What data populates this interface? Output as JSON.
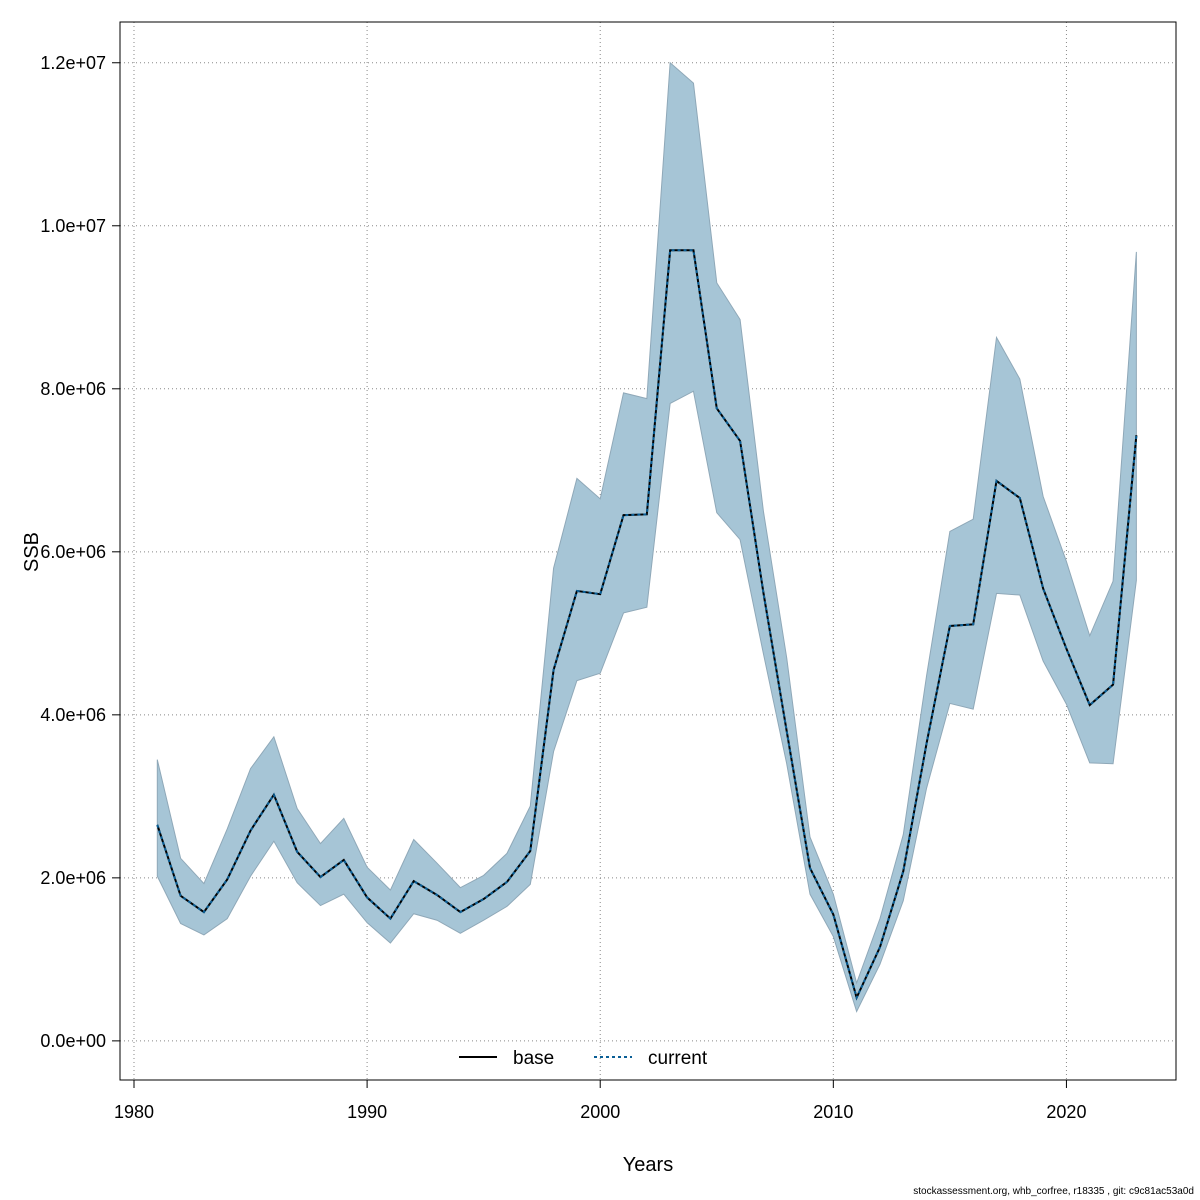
{
  "chart_data": {
    "type": "line",
    "xlabel": "Years",
    "ylabel": "SSB",
    "xlim": [
      1979.4,
      2024.7
    ],
    "ylim": [
      -480000,
      12500000
    ],
    "x_ticks": [
      1980,
      1990,
      2000,
      2010,
      2020
    ],
    "x_tick_labels": [
      "1980",
      "1990",
      "2000",
      "2010",
      "2020"
    ],
    "y_ticks": [
      0,
      2000000,
      4000000,
      6000000,
      8000000,
      10000000,
      12000000
    ],
    "y_tick_labels": [
      "0.0e+00",
      "2.0e+06",
      "4.0e+06",
      "6.0e+06",
      "8.0e+06",
      "1.0e+07",
      "1.2e+07"
    ],
    "grid": true,
    "legend_position": "bottom-center",
    "x": [
      1981,
      1982,
      1983,
      1984,
      1985,
      1986,
      1987,
      1988,
      1989,
      1990,
      1991,
      1992,
      1993,
      1994,
      1995,
      1996,
      1997,
      1998,
      1999,
      2000,
      2001,
      2002,
      2003,
      2004,
      2005,
      2006,
      2007,
      2008,
      2009,
      2010,
      2011,
      2012,
      2013,
      2014,
      2015,
      2016,
      2017,
      2018,
      2019,
      2020,
      2021,
      2022,
      2023
    ],
    "series": [
      {
        "name": "base",
        "color": "#000000",
        "line_style": "solid",
        "values": [
          2650000,
          1780000,
          1580000,
          1980000,
          2580000,
          3020000,
          2320000,
          2010000,
          2220000,
          1760000,
          1500000,
          1960000,
          1790000,
          1580000,
          1740000,
          1950000,
          2330000,
          4550000,
          5520000,
          5480000,
          6450000,
          6460000,
          9700000,
          9700000,
          7760000,
          7360000,
          5500000,
          3800000,
          2120000,
          1550000,
          530000,
          1150000,
          2080000,
          3650000,
          5090000,
          5110000,
          6870000,
          6660000,
          5550000,
          4810000,
          4120000,
          4370000,
          7430000
        ],
        "lower": [
          2020000,
          1440000,
          1300000,
          1500000,
          2020000,
          2450000,
          1940000,
          1660000,
          1800000,
          1450000,
          1200000,
          1560000,
          1480000,
          1320000,
          1480000,
          1650000,
          1920000,
          3550000,
          4420000,
          4510000,
          5250000,
          5320000,
          7820000,
          7970000,
          6480000,
          6150000,
          4750000,
          3400000,
          1800000,
          1280000,
          360000,
          940000,
          1720000,
          3100000,
          4140000,
          4070000,
          5490000,
          5470000,
          4660000,
          4130000,
          3410000,
          3400000,
          5650000
        ],
        "upper": [
          3450000,
          2240000,
          1930000,
          2600000,
          3340000,
          3730000,
          2850000,
          2420000,
          2730000,
          2130000,
          1850000,
          2470000,
          2180000,
          1880000,
          2030000,
          2300000,
          2880000,
          5800000,
          6900000,
          6650000,
          7950000,
          7880000,
          12000000,
          11750000,
          9300000,
          8850000,
          6500000,
          4700000,
          2500000,
          1800000,
          710000,
          1500000,
          2530000,
          4480000,
          6250000,
          6400000,
          8630000,
          8120000,
          6680000,
          5880000,
          4970000,
          5640000,
          9680000
        ]
      },
      {
        "name": "current",
        "color": "#0a5f96",
        "line_style": "dashed",
        "values": [
          2650000,
          1780000,
          1580000,
          1980000,
          2580000,
          3020000,
          2320000,
          2010000,
          2220000,
          1760000,
          1500000,
          1960000,
          1790000,
          1580000,
          1740000,
          1950000,
          2330000,
          4550000,
          5520000,
          5480000,
          6450000,
          6460000,
          9700000,
          9700000,
          7760000,
          7360000,
          5500000,
          3800000,
          2120000,
          1550000,
          530000,
          1150000,
          2080000,
          3650000,
          5090000,
          5110000,
          6870000,
          6660000,
          5550000,
          4810000,
          4120000,
          4370000,
          7430000
        ]
      }
    ],
    "band_color": "#a6c5d6",
    "band_edge_color": "#8fa8b8"
  },
  "footer": {
    "note": "stockassessment.org, whb_corfree, r18335 , git: c9c81ac53a0d"
  }
}
